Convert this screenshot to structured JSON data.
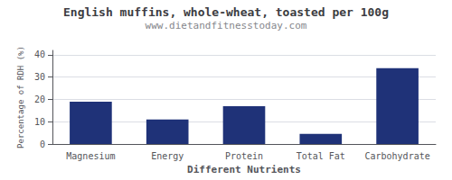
{
  "chart_data": {
    "type": "bar",
    "title": "English muffins, whole-wheat, toasted per 100g",
    "subtitle": "www.dietandfitnesstoday.com",
    "xlabel": "Different Nutrients",
    "ylabel": "Percentage of RDH (%)",
    "categories": [
      "Magnesium",
      "Energy",
      "Protein",
      "Total Fat",
      "Carbohydrate"
    ],
    "values": [
      19.0,
      11.0,
      17.0,
      4.5,
      34.0
    ],
    "color": "#1f3278",
    "ylim": [
      0,
      42
    ],
    "yticks": [
      0,
      10,
      20,
      30,
      40
    ],
    "grid": true
  }
}
